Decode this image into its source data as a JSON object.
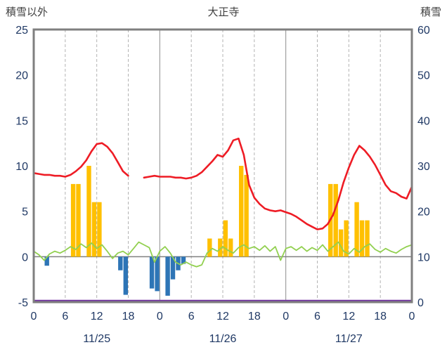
{
  "colors": {
    "red_line": "#ee1c25",
    "green_line": "#92d050",
    "orange_bar": "#ffc000",
    "blue_bar": "#2e75b6",
    "purple_line": "#7030a0",
    "grid_line": "#b3b3b3",
    "day_line": "#8c8c8c",
    "zero_line": "#808080",
    "border": "#7f7f7f",
    "tick_text": "#1f3864",
    "title_text": "#3f3f3f"
  },
  "chart_data": {
    "type": "line+bar",
    "title": "大正寺",
    "left_axis": {
      "title": "積雪以外",
      "min": -5,
      "max": 25,
      "ticks": [
        25,
        20,
        15,
        10,
        5,
        0,
        -5
      ]
    },
    "right_axis": {
      "title": "積雪",
      "min": 0,
      "max": 60,
      "ticks": [
        60,
        50,
        40,
        30,
        20,
        10,
        0
      ]
    },
    "x_axis": {
      "unit": "hour",
      "span_hours": 72,
      "tick_hours": [
        0,
        6,
        12,
        18,
        24,
        30,
        36,
        42,
        48,
        54,
        60,
        66,
        72
      ],
      "tick_labels": [
        "0",
        "6",
        "12",
        "18",
        "0",
        "6",
        "12",
        "18",
        "0",
        "6",
        "12",
        "18",
        "0"
      ],
      "day_boundary_hours": [
        24,
        48
      ],
      "day_labels": [
        {
          "center_hour": 12,
          "label": "11/25"
        },
        {
          "center_hour": 36,
          "label": "11/26"
        },
        {
          "center_hour": 60,
          "label": "11/27"
        }
      ]
    },
    "series": [
      {
        "name": "red-line",
        "type": "line",
        "axis": "left",
        "color_key": "red_line",
        "values": [
          9.2,
          9.1,
          9.0,
          9.0,
          8.9,
          8.9,
          8.8,
          9.0,
          9.4,
          9.9,
          10.6,
          11.6,
          12.4,
          12.5,
          12.1,
          11.4,
          10.4,
          9.4,
          8.9,
          null,
          null,
          8.7,
          8.8,
          8.9,
          8.8,
          8.8,
          8.8,
          8.7,
          8.7,
          8.6,
          8.7,
          8.9,
          9.3,
          9.9,
          10.5,
          11.2,
          11.0,
          11.7,
          12.8,
          13.0,
          11.2,
          7.9,
          6.5,
          5.8,
          5.3,
          5.1,
          5.0,
          5.1,
          4.9,
          4.7,
          4.4,
          4.0,
          3.6,
          3.3,
          3.0,
          3.1,
          3.6,
          4.6,
          6.2,
          8.2,
          9.8,
          11.2,
          12.2,
          11.7,
          11.0,
          10.1,
          9.0,
          7.9,
          7.2,
          7.0,
          6.6,
          6.4,
          7.7
        ]
      },
      {
        "name": "green-line",
        "type": "line",
        "axis": "left",
        "color_key": "green_line",
        "values": [
          0.6,
          0.2,
          -0.4,
          0.3,
          0.6,
          0.4,
          0.7,
          1.1,
          0.8,
          1.4,
          1.0,
          1.5,
          0.9,
          1.3,
          0.6,
          -0.2,
          0.4,
          0.6,
          0.2,
          0.9,
          1.6,
          1.3,
          1.0,
          -0.6,
          0.6,
          1.1,
          0.4,
          -0.6,
          -0.9,
          -0.6,
          -0.9,
          -1.1,
          -0.9,
          0.4,
          0.9,
          0.6,
          1.1,
          0.7,
          0.4,
          1.0,
          1.3,
          0.9,
          1.1,
          0.7,
          1.2,
          0.6,
          1.1,
          -0.4,
          0.9,
          1.1,
          0.7,
          1.1,
          0.6,
          1.0,
          0.7,
          1.3,
          0.6,
          1.1,
          1.6,
          0.6,
          0.3,
          0.9,
          0.5,
          1.1,
          1.4,
          0.8,
          0.5,
          0.9,
          0.6,
          0.4,
          0.8,
          1.1,
          1.3
        ]
      },
      {
        "name": "purple-snow-line",
        "type": "constant-line",
        "axis": "right",
        "color_key": "purple_line",
        "constant": 0
      },
      {
        "name": "orange-bars",
        "type": "bar",
        "axis": "left",
        "color_key": "orange_bar",
        "points": [
          {
            "h": 7,
            "v": 8
          },
          {
            "h": 8,
            "v": 8
          },
          {
            "h": 10,
            "v": 10
          },
          {
            "h": 11,
            "v": 6
          },
          {
            "h": 12,
            "v": 6
          },
          {
            "h": 33,
            "v": 2
          },
          {
            "h": 35,
            "v": 2
          },
          {
            "h": 36,
            "v": 4
          },
          {
            "h": 37,
            "v": 2
          },
          {
            "h": 39,
            "v": 10
          },
          {
            "h": 40,
            "v": 9
          },
          {
            "h": 56,
            "v": 8
          },
          {
            "h": 57,
            "v": 8
          },
          {
            "h": 58,
            "v": 3
          },
          {
            "h": 59,
            "v": 4
          },
          {
            "h": 61,
            "v": 6
          },
          {
            "h": 62,
            "v": 4
          },
          {
            "h": 63,
            "v": 4
          }
        ]
      },
      {
        "name": "blue-bars",
        "type": "bar",
        "axis": "left",
        "color_key": "blue_bar",
        "points": [
          {
            "h": 2,
            "v": -1.0
          },
          {
            "h": 16,
            "v": -1.5
          },
          {
            "h": 17,
            "v": -4.2
          },
          {
            "h": 22,
            "v": -3.5
          },
          {
            "h": 23,
            "v": -3.8
          },
          {
            "h": 25,
            "v": -4.3
          },
          {
            "h": 26,
            "v": -2.5
          },
          {
            "h": 27,
            "v": -1.5
          },
          {
            "h": 28,
            "v": -0.8
          }
        ]
      }
    ]
  }
}
